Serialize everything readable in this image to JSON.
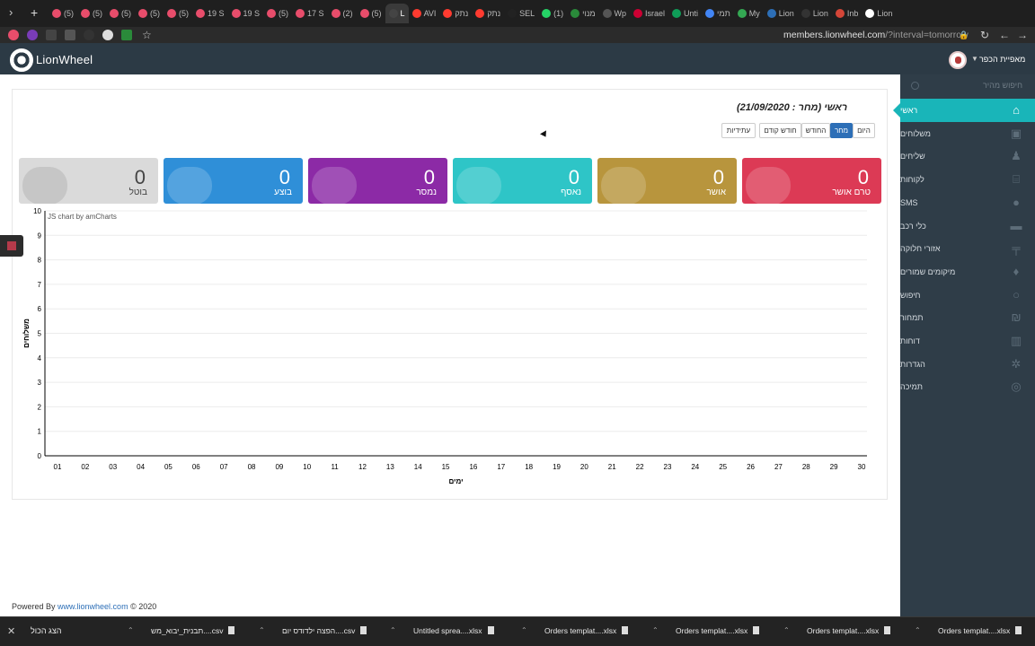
{
  "browser": {
    "tabs": [
      "(5)",
      "(5)",
      "(5)",
      "(5)",
      "(5)",
      "19 S",
      "19 S",
      "(5)",
      "17 S",
      "(2)",
      "(5)",
      "L",
      "AVI",
      "נתק",
      "נתק",
      "SEL",
      "(1)",
      "מנוי",
      "Wp",
      "Israel",
      "Unti",
      "תמי",
      "My",
      "Lion",
      "Lion",
      "Inb",
      "Lion"
    ],
    "url_host": "members.lionwheel.com",
    "url_path": "/?interval=tomorrow"
  },
  "header": {
    "logo_text": "LionWheel",
    "account_name": "מאפיית הכפר"
  },
  "sidebar": {
    "search_placeholder": "חיפוש מהיר",
    "items": [
      {
        "label": "ראשי",
        "icon": "home-icon",
        "active": true
      },
      {
        "label": "משלוחים",
        "icon": "box-icon"
      },
      {
        "label": "שליחים",
        "icon": "users-icon"
      },
      {
        "label": "לקוחות",
        "icon": "bank-icon"
      },
      {
        "label": "SMS",
        "icon": "chat-icon"
      },
      {
        "label": "כלי רכב",
        "icon": "truck-icon"
      },
      {
        "label": "אזורי חלוקה",
        "icon": "signpost-icon"
      },
      {
        "label": "מיקומים שמורים",
        "icon": "pin-icon"
      },
      {
        "label": "חיפוש",
        "icon": "search-icon"
      },
      {
        "label": "תמחור",
        "icon": "shekel-icon"
      },
      {
        "label": "דוחות",
        "icon": "bar-chart-icon"
      },
      {
        "label": "הגדרות",
        "icon": "gears-icon"
      },
      {
        "label": "תמיכה",
        "icon": "lifebuoy-icon"
      }
    ]
  },
  "main": {
    "title": "ראשי (מחר : 21/09/2020)",
    "filters": [
      "היום",
      "מחר",
      "החודש",
      "חודש קודם",
      "עתידיות"
    ],
    "selected_filter": "מחר",
    "cards": [
      {
        "label": "טרם אושר",
        "value": "0",
        "color": "#dc3a55"
      },
      {
        "label": "אושר",
        "value": "0",
        "color": "#b8953d"
      },
      {
        "label": "נאסף",
        "value": "0",
        "color": "#2ec5c7"
      },
      {
        "label": "נמסר",
        "value": "0",
        "color": "#8c2aa6"
      },
      {
        "label": "בוצע",
        "value": "0",
        "color": "#2f8fd8"
      },
      {
        "label": "בוטל",
        "value": "0",
        "color": "#dadada"
      }
    ],
    "chart_credit": "JS chart by amCharts"
  },
  "chart_data": {
    "type": "line",
    "x": [
      "01",
      "02",
      "03",
      "04",
      "05",
      "06",
      "07",
      "08",
      "09",
      "10",
      "11",
      "12",
      "13",
      "14",
      "15",
      "16",
      "17",
      "18",
      "19",
      "20",
      "21",
      "22",
      "23",
      "24",
      "25",
      "26",
      "27",
      "28",
      "29",
      "30"
    ],
    "series": [],
    "xlabel": "ימים",
    "ylabel": "משלוחים",
    "ylim": [
      0,
      10
    ],
    "yticks": [
      0,
      1,
      2,
      3,
      4,
      5,
      6,
      7,
      8,
      9,
      10
    ],
    "grid": true
  },
  "footer": {
    "prefix": "Powered By ",
    "link": "www.lionwheel.com",
    "suffix": " © 2020"
  },
  "downloads": {
    "show_all": "הצג הכול",
    "files": [
      "Orders templat....xlsx",
      "Orders templat....xlsx",
      "Orders templat....xlsx",
      "Orders templat....xlsx",
      "Untitled sprea....xlsx",
      "הפצה ילדודס יום....csv",
      "תבנית_יבוא_מש....csv"
    ]
  }
}
